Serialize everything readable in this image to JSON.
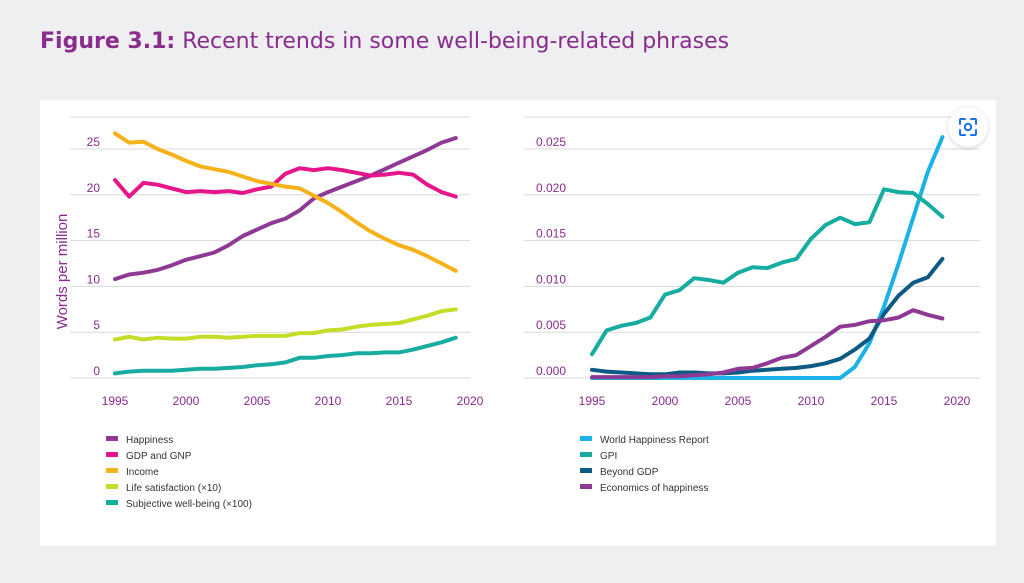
{
  "figure": {
    "label": "Figure 3.1:",
    "caption": "Recent trends in some well-being-related phrases"
  },
  "lens_button": {
    "icon": "lens-search-icon"
  },
  "chart_data": [
    {
      "type": "line",
      "id": "left",
      "ylabel": "Words per million",
      "xlabel": "",
      "xlim": [
        1995,
        2020
      ],
      "ylim": [
        0,
        27
      ],
      "xticks": [
        1995,
        2000,
        2005,
        2010,
        2015,
        2020
      ],
      "yticks": [
        0,
        5,
        10,
        15,
        20,
        25
      ],
      "ytick_labels": [
        "0",
        "5",
        "10",
        "15",
        "20",
        "25"
      ],
      "grid": true,
      "legend_position": "bottom",
      "series": [
        {
          "name": "Happiness",
          "color": "#8e3a94",
          "x": [
            1995,
            1996,
            1997,
            1998,
            1999,
            2000,
            2001,
            2002,
            2003,
            2004,
            2005,
            2006,
            2007,
            2008,
            2009,
            2010,
            2011,
            2012,
            2013,
            2014,
            2015,
            2016,
            2017,
            2018,
            2019
          ],
          "y": [
            10.8,
            11.3,
            11.5,
            11.8,
            12.3,
            12.9,
            13.3,
            13.7,
            14.5,
            15.5,
            16.2,
            16.9,
            17.4,
            18.3,
            19.6,
            20.3,
            20.9,
            21.5,
            22.1,
            22.8,
            23.5,
            24.2,
            24.9,
            25.7,
            26.2
          ]
        },
        {
          "name": "GDP and GNP",
          "color": "#e6168a",
          "x": [
            1995,
            1996,
            1997,
            1998,
            1999,
            2000,
            2001,
            2002,
            2003,
            2004,
            2005,
            2006,
            2007,
            2008,
            2009,
            2010,
            2011,
            2012,
            2013,
            2014,
            2015,
            2016,
            2017,
            2018,
            2019
          ],
          "y": [
            21.6,
            19.8,
            21.3,
            21.1,
            20.7,
            20.3,
            20.4,
            20.3,
            20.4,
            20.2,
            20.6,
            20.9,
            22.3,
            22.9,
            22.7,
            22.9,
            22.7,
            22.4,
            22.1,
            22.2,
            22.4,
            22.2,
            21.1,
            20.3,
            19.8
          ]
        },
        {
          "name": "Income",
          "color": "#f6b21a",
          "x": [
            1995,
            1996,
            1997,
            1998,
            1999,
            2000,
            2001,
            2002,
            2003,
            2004,
            2005,
            2006,
            2007,
            2008,
            2009,
            2010,
            2011,
            2012,
            2013,
            2014,
            2015,
            2016,
            2017,
            2018,
            2019
          ],
          "y": [
            26.7,
            25.7,
            25.8,
            25.0,
            24.4,
            23.7,
            23.1,
            22.8,
            22.5,
            22.0,
            21.5,
            21.2,
            20.9,
            20.7,
            19.9,
            19.1,
            18.1,
            17.0,
            16.0,
            15.2,
            14.5,
            14.0,
            13.3,
            12.5,
            11.7
          ]
        },
        {
          "name": "Life satisfaction (×10)",
          "color": "#c5dd28",
          "x": [
            1995,
            1996,
            1997,
            1998,
            1999,
            2000,
            2001,
            2002,
            2003,
            2004,
            2005,
            2006,
            2007,
            2008,
            2009,
            2010,
            2011,
            2012,
            2013,
            2014,
            2015,
            2016,
            2017,
            2018,
            2019
          ],
          "y": [
            4.2,
            4.5,
            4.2,
            4.4,
            4.3,
            4.3,
            4.5,
            4.5,
            4.4,
            4.5,
            4.6,
            4.6,
            4.6,
            4.9,
            4.9,
            5.2,
            5.3,
            5.6,
            5.8,
            5.9,
            6.0,
            6.4,
            6.8,
            7.3,
            7.5
          ]
        },
        {
          "name": "Subjective well-being (×100)",
          "color": "#17aca0",
          "x": [
            1995,
            1996,
            1997,
            1998,
            1999,
            2000,
            2001,
            2002,
            2003,
            2004,
            2005,
            2006,
            2007,
            2008,
            2009,
            2010,
            2011,
            2012,
            2013,
            2014,
            2015,
            2016,
            2017,
            2018,
            2019
          ],
          "y": [
            0.5,
            0.7,
            0.8,
            0.8,
            0.8,
            0.9,
            1.0,
            1.0,
            1.1,
            1.2,
            1.4,
            1.5,
            1.7,
            2.2,
            2.2,
            2.4,
            2.5,
            2.7,
            2.7,
            2.8,
            2.8,
            3.1,
            3.5,
            3.9,
            4.4
          ]
        }
      ]
    },
    {
      "type": "line",
      "id": "right",
      "ylabel": "",
      "xlabel": "",
      "xlim": [
        1995,
        2020
      ],
      "ylim": [
        0,
        0.027
      ],
      "xticks": [
        1995,
        2000,
        2005,
        2010,
        2015,
        2020
      ],
      "yticks": [
        0,
        0.005,
        0.01,
        0.015,
        0.02,
        0.025
      ],
      "ytick_labels": [
        "0.000",
        "0.005",
        "0.010",
        "0.015",
        "0.020",
        "0.025"
      ],
      "grid": true,
      "legend_position": "bottom",
      "series": [
        {
          "name": "World Happiness Report",
          "color": "#1cb1e8",
          "x": [
            1995,
            2000,
            2005,
            2010,
            2011,
            2012,
            2013,
            2014,
            2015,
            2016,
            2017,
            2018,
            2019
          ],
          "y": [
            0,
            0,
            0,
            0,
            0,
            0,
            0.0012,
            0.0038,
            0.0078,
            0.0125,
            0.0175,
            0.0225,
            0.0263
          ]
        },
        {
          "name": "GPI",
          "color": "#17aca0",
          "x": [
            1995,
            1996,
            1997,
            1998,
            1999,
            2000,
            2001,
            2002,
            2003,
            2004,
            2005,
            2006,
            2007,
            2008,
            2009,
            2010,
            2011,
            2012,
            2013,
            2014,
            2015,
            2016,
            2017,
            2018,
            2019
          ],
          "y": [
            0.0026,
            0.0052,
            0.0057,
            0.006,
            0.0066,
            0.0091,
            0.0096,
            0.0109,
            0.0107,
            0.0104,
            0.0115,
            0.0121,
            0.012,
            0.0126,
            0.013,
            0.0152,
            0.0167,
            0.0175,
            0.0168,
            0.017,
            0.0206,
            0.0203,
            0.0202,
            0.019,
            0.0176
          ]
        },
        {
          "name": "Beyond GDP",
          "color": "#0d5a85",
          "x": [
            1995,
            1996,
            1997,
            1998,
            1999,
            2000,
            2001,
            2002,
            2003,
            2004,
            2005,
            2006,
            2007,
            2008,
            2009,
            2010,
            2011,
            2012,
            2013,
            2014,
            2015,
            2016,
            2017,
            2018,
            2019
          ],
          "y": [
            0.0009,
            0.0007,
            0.0006,
            0.0005,
            0.0004,
            0.0004,
            0.0006,
            0.0006,
            0.0005,
            0.0005,
            0.0006,
            0.0008,
            0.0009,
            0.001,
            0.0011,
            0.0013,
            0.0016,
            0.0021,
            0.0031,
            0.0043,
            0.007,
            0.009,
            0.0104,
            0.011,
            0.013
          ]
        },
        {
          "name": "Economics of happiness",
          "color": "#8e3a94",
          "x": [
            1995,
            1996,
            1997,
            1998,
            1999,
            2000,
            2001,
            2002,
            2003,
            2004,
            2005,
            2006,
            2007,
            2008,
            2009,
            2010,
            2011,
            2012,
            2013,
            2014,
            2015,
            2016,
            2017,
            2018,
            2019
          ],
          "y": [
            0.0001,
            0.0001,
            0.0001,
            0.0001,
            0.0001,
            0.0002,
            0.0002,
            0.0003,
            0.0004,
            0.0006,
            0.001,
            0.0011,
            0.0016,
            0.0022,
            0.0025,
            0.0035,
            0.0045,
            0.0056,
            0.0058,
            0.0062,
            0.0063,
            0.0066,
            0.0074,
            0.0069,
            0.0065
          ]
        }
      ]
    }
  ]
}
